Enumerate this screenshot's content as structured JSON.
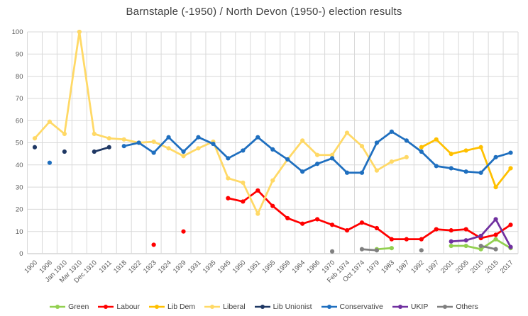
{
  "page_title": "Barnstaple (-1950) / North Devon (1950-) election results",
  "chart_data": {
    "type": "line",
    "title": "Barnstaple (-1950) / North Devon (1950-) election results",
    "ylabel": "",
    "xlabel": "",
    "ylim": [
      0,
      100
    ],
    "ytick_step": 10,
    "grid": true,
    "legend_position": "bottom",
    "grid_color": "#D9D9D9",
    "axis_color": "#BFBFBF",
    "tick_label_color": "#595959",
    "title_color": "#3F3F3F",
    "background_color": "#FFFFFF",
    "categories": [
      "1900",
      "1906",
      "Jan 1910",
      "Mar 1910",
      "Dec 1910",
      "1911",
      "1918",
      "1922",
      "1923",
      "1924",
      "1929",
      "1931",
      "1935",
      "1945",
      "1950",
      "1951",
      "1955",
      "1959",
      "1964",
      "1966",
      "1970",
      "Feb 1974",
      "Oct 1974",
      "1979",
      "1983",
      "1987",
      "1992",
      "1997",
      "2001",
      "2005",
      "2010",
      "2015",
      "2017"
    ],
    "series": [
      {
        "name": "Green",
        "color": "#92D050",
        "values": [
          null,
          null,
          null,
          null,
          null,
          null,
          null,
          null,
          null,
          null,
          null,
          null,
          null,
          null,
          null,
          null,
          null,
          null,
          null,
          null,
          null,
          null,
          null,
          2,
          2.5,
          null,
          null,
          null,
          3.5,
          3.5,
          2,
          6.5,
          2.5
        ]
      },
      {
        "name": "Labour",
        "color": "#FF0000",
        "values": [
          null,
          null,
          null,
          null,
          null,
          null,
          null,
          null,
          4,
          null,
          10,
          null,
          null,
          25,
          23.5,
          28.5,
          21.5,
          16,
          13.5,
          15.5,
          13,
          10.5,
          14,
          11.5,
          6.5,
          6.5,
          6.5,
          11,
          10.5,
          11,
          7,
          8.5,
          13
        ]
      },
      {
        "name": "Lib Dem",
        "color": "#FFC000",
        "values": [
          null,
          null,
          null,
          null,
          null,
          null,
          null,
          null,
          null,
          null,
          null,
          null,
          null,
          null,
          null,
          null,
          null,
          null,
          null,
          null,
          null,
          null,
          null,
          null,
          null,
          null,
          48,
          51.5,
          45,
          46.5,
          48,
          30,
          38.5
        ]
      },
      {
        "name": "Liberal",
        "color": "#FFD966",
        "values": [
          52,
          59.5,
          54,
          100,
          54,
          52,
          51.5,
          50,
          50.5,
          47.5,
          44,
          47.5,
          50.5,
          34,
          32,
          18,
          33,
          42.5,
          51,
          44.5,
          44.5,
          54.5,
          48.5,
          37.5,
          41.5,
          43.5,
          null,
          null,
          null,
          null,
          null,
          null,
          null
        ]
      },
      {
        "name": "Lib Unionist",
        "color": "#1F3864",
        "values": [
          48,
          null,
          46,
          null,
          46,
          48,
          null,
          null,
          null,
          null,
          null,
          null,
          null,
          null,
          null,
          null,
          null,
          null,
          null,
          null,
          null,
          null,
          null,
          null,
          null,
          null,
          null,
          null,
          null,
          null,
          null,
          null,
          null
        ]
      },
      {
        "name": "Conservative",
        "color": "#1F6FBF",
        "values": [
          null,
          41,
          null,
          null,
          null,
          null,
          48.5,
          50,
          45.5,
          52.5,
          46,
          52.5,
          49.5,
          43,
          46.5,
          52.5,
          47,
          42.5,
          37,
          40.5,
          43,
          36.5,
          36.5,
          50,
          55,
          51,
          46,
          39.5,
          38.5,
          37,
          36.5,
          43.5,
          45.5
        ]
      },
      {
        "name": "UKIP",
        "color": "#7030A0",
        "values": [
          null,
          null,
          null,
          null,
          null,
          null,
          null,
          null,
          null,
          null,
          null,
          null,
          null,
          null,
          null,
          null,
          null,
          null,
          null,
          null,
          null,
          null,
          null,
          null,
          null,
          null,
          null,
          null,
          5.5,
          6,
          8,
          15.5,
          3
        ]
      },
      {
        "name": "Others",
        "color": "#808080",
        "values": [
          null,
          null,
          null,
          null,
          null,
          null,
          null,
          null,
          null,
          null,
          null,
          null,
          null,
          null,
          null,
          null,
          null,
          null,
          null,
          null,
          1,
          null,
          2,
          1.5,
          null,
          null,
          1.5,
          null,
          null,
          null,
          3.5,
          2,
          null
        ]
      }
    ]
  }
}
